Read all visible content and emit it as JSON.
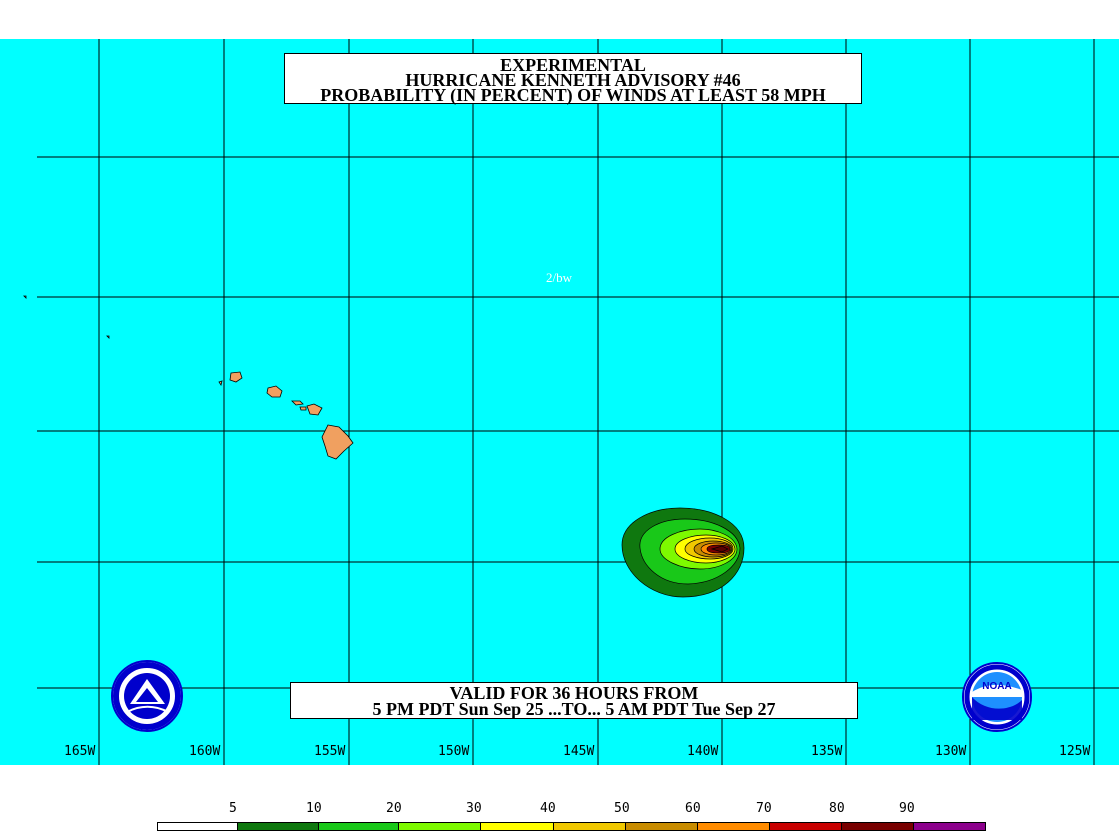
{
  "title": {
    "line1": "EXPERIMENTAL",
    "line2": "HURRICANE KENNETH ADVISORY #46",
    "line3": "PROBABILITY (IN PERCENT) OF WINDS AT LEAST 58 MPH"
  },
  "annotation": "2/bw",
  "valid": {
    "line1": "VALID FOR 36 HOURS FROM",
    "line2": "5 PM PDT Sun Sep 25 ...TO... 5 AM PDT Tue Sep 27"
  },
  "longitude_labels": [
    "165W",
    "160W",
    "155W",
    "150W",
    "145W",
    "140W",
    "135W",
    "130W",
    "125W"
  ],
  "legend": {
    "labels": [
      "5",
      "10",
      "20",
      "30",
      "40",
      "50",
      "60",
      "70",
      "80",
      "90"
    ],
    "colors": [
      "#ffffff",
      "#0f780f",
      "#19c819",
      "#7dfa00",
      "#ffff00",
      "#f0c800",
      "#c88c00",
      "#ff8c00",
      "#c80000",
      "#780000",
      "#8c008c"
    ]
  },
  "colors": {
    "ocean": "#00ffff",
    "land": "#f0a060",
    "grid": "#000000"
  },
  "logos": {
    "left": "national-weather-service-logo",
    "right": "noaa-logo"
  }
}
